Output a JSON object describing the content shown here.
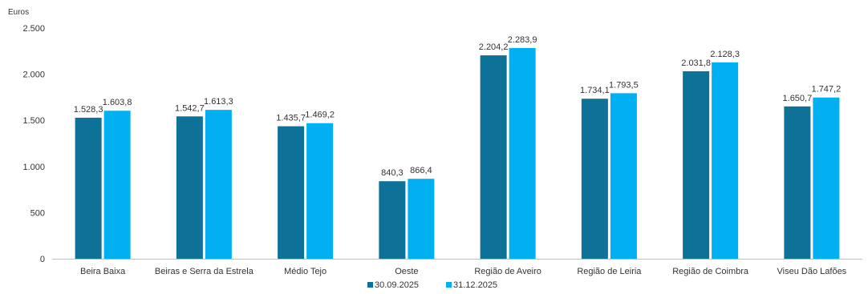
{
  "chart_data": {
    "type": "bar",
    "ylabel": "Euros",
    "ylim": [
      0,
      2500
    ],
    "yticks": [
      0,
      500,
      1000,
      1500,
      2000,
      2500
    ],
    "ytick_labels": [
      "0",
      "500",
      "1.000",
      "1.500",
      "2.000",
      "2.500"
    ],
    "grid": false,
    "legend_position": "bottom",
    "categories": [
      "Beira Baixa",
      "Beiras e Serra da Estrela",
      "Médio Tejo",
      "Oeste",
      "Região de Aveiro",
      "Região de Leiria",
      "Região de Coimbra",
      "Viseu Dão Lafões"
    ],
    "series": [
      {
        "name": "30.09.2025",
        "color": "#0e7197",
        "values": [
          1528.3,
          1542.7,
          1435.7,
          840.3,
          2204.2,
          1734.1,
          2031.8,
          1650.7
        ],
        "labels": [
          "1.528,3",
          "1.542,7",
          "1.435,7",
          "840,3",
          "2.204,2",
          "1.734,1",
          "2.031,8",
          "1.650,7"
        ]
      },
      {
        "name": "31.12.2025",
        "color": "#00b0f0",
        "values": [
          1603.8,
          1613.3,
          1469.2,
          866.4,
          2283.9,
          1793.5,
          2128.3,
          1747.2
        ],
        "labels": [
          "1.603,8",
          "1.613,3",
          "1.469,2",
          "866,4",
          "2.283,9",
          "1.793,5",
          "2.128,3",
          "1.747,2"
        ]
      }
    ]
  }
}
